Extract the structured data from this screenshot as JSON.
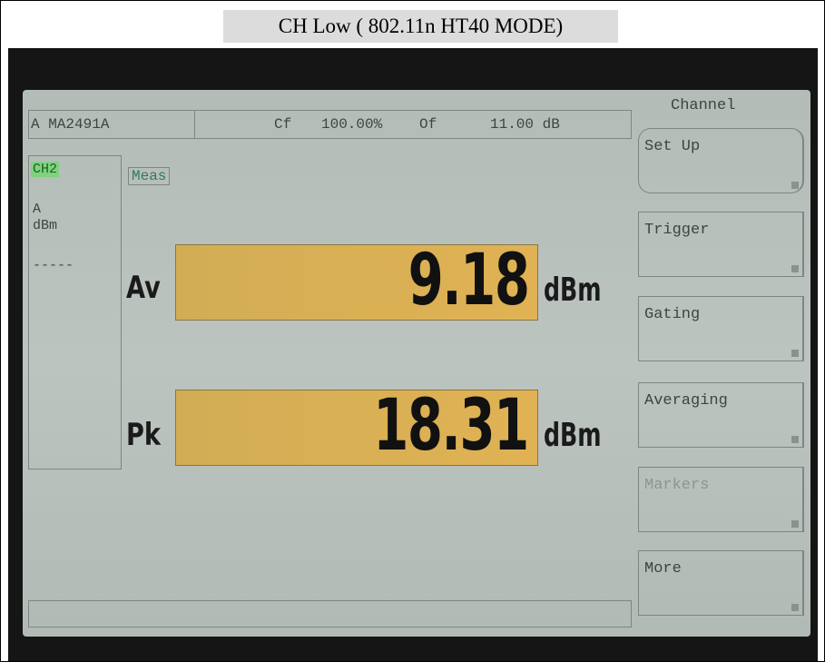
{
  "title": "CH Low ( 802.11n HT40 MODE)",
  "header": {
    "sensor": "A MA2491A",
    "cf_label": "Cf",
    "cf_value": "100.00%",
    "of_label": "Of",
    "of_value": "11.00 dB"
  },
  "channel_panel": {
    "channel": "CH2",
    "sensor": "A",
    "unit": "dBm",
    "limit": "-----"
  },
  "measurement_label": "Meas",
  "readings": [
    {
      "label": "Av",
      "value": "9.18",
      "unit": "dBm"
    },
    {
      "label": "Pk",
      "value": "18.31",
      "unit": "dBm"
    }
  ],
  "menu": {
    "title": "Channel",
    "buttons": [
      "Set Up",
      "Trigger",
      "Gating",
      "Averaging",
      "Markers",
      "More"
    ]
  }
}
